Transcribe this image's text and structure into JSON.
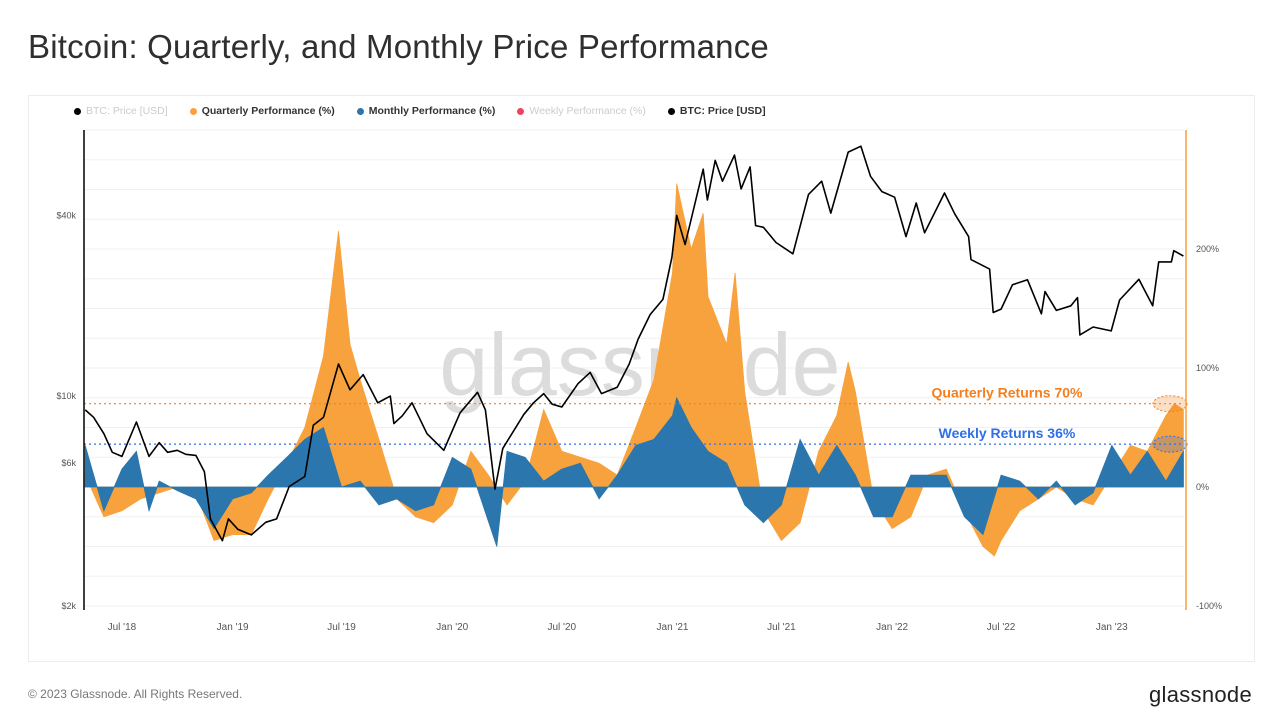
{
  "title": "Bitcoin: Quarterly, and Monthly Price Performance",
  "footer": "© 2023 Glassnode. All Rights Reserved.",
  "logo_text": "glassnode",
  "watermark": "glassnode",
  "legend": [
    {
      "label": "BTC: Price [USD]",
      "color": "#000000",
      "active": false
    },
    {
      "label": "Quarterly Performance (%)",
      "color": "#f7a23c",
      "active": true
    },
    {
      "label": "Monthly Performance (%)",
      "color": "#2a76ad",
      "active": true
    },
    {
      "label": "Weekly Performance (%)",
      "color": "#f0435a",
      "active": false
    },
    {
      "label": "BTC: Price [USD]",
      "color": "#000000",
      "active": true
    }
  ],
  "annotations": [
    {
      "text": "Quarterly Returns 70%",
      "level": 70,
      "color": "#f47f20"
    },
    {
      "text": "Weekly Returns 36%",
      "level": 36,
      "color": "#2f6fe8"
    }
  ],
  "chart_data": {
    "type": "line",
    "x_range": [
      "2018-04-29",
      "2023-05-01"
    ],
    "x_ticks": [
      "Jul '18",
      "Jan '19",
      "Jul '19",
      "Jan '20",
      "Jul '20",
      "Jan '21",
      "Jul '21",
      "Jan '22",
      "Jul '22",
      "Jan '23"
    ],
    "x_tick_dates": [
      "2018-07-01",
      "2019-01-01",
      "2019-07-01",
      "2020-01-01",
      "2020-07-01",
      "2021-01-01",
      "2021-07-01",
      "2022-01-01",
      "2022-07-01",
      "2023-01-01"
    ],
    "y_left": {
      "scale": "log",
      "range": [
        2000,
        77000
      ],
      "ticks": [
        2000,
        6000,
        10000,
        40000
      ],
      "tick_labels": [
        "$2k",
        "$6k",
        "$10k",
        "$40k"
      ]
    },
    "y_right": {
      "scale": "linear",
      "range": [
        -100,
        300
      ],
      "ticks": [
        -100,
        0,
        100,
        200
      ],
      "tick_labels": [
        "-100%",
        "0%",
        "100%",
        "200%"
      ]
    },
    "grid": true,
    "legend_position": "top-left",
    "series": [
      {
        "name": "BTC: Price [USD]",
        "axis": "left",
        "color": "#000000",
        "points": [
          [
            "2018-05-01",
            9000
          ],
          [
            "2018-05-15",
            8500
          ],
          [
            "2018-06-01",
            7500
          ],
          [
            "2018-06-15",
            6500
          ],
          [
            "2018-07-01",
            6300
          ],
          [
            "2018-07-25",
            8200
          ],
          [
            "2018-08-15",
            6300
          ],
          [
            "2018-09-01",
            7000
          ],
          [
            "2018-09-15",
            6500
          ],
          [
            "2018-10-01",
            6600
          ],
          [
            "2018-10-15",
            6400
          ],
          [
            "2018-11-01",
            6350
          ],
          [
            "2018-11-15",
            5600
          ],
          [
            "2018-11-25",
            3900
          ],
          [
            "2018-12-15",
            3300
          ],
          [
            "2018-12-25",
            3900
          ],
          [
            "2019-01-10",
            3600
          ],
          [
            "2019-02-01",
            3450
          ],
          [
            "2019-02-25",
            3800
          ],
          [
            "2019-03-15",
            3900
          ],
          [
            "2019-04-05",
            5000
          ],
          [
            "2019-05-01",
            5400
          ],
          [
            "2019-05-15",
            8000
          ],
          [
            "2019-06-01",
            8500
          ],
          [
            "2019-06-26",
            12800
          ],
          [
            "2019-07-15",
            10500
          ],
          [
            "2019-08-06",
            11800
          ],
          [
            "2019-08-30",
            9500
          ],
          [
            "2019-09-20",
            10000
          ],
          [
            "2019-09-26",
            8100
          ],
          [
            "2019-10-10",
            8600
          ],
          [
            "2019-10-26",
            9500
          ],
          [
            "2019-11-20",
            7500
          ],
          [
            "2019-12-18",
            6600
          ],
          [
            "2020-01-14",
            8800
          ],
          [
            "2020-02-12",
            10300
          ],
          [
            "2020-02-25",
            9000
          ],
          [
            "2020-03-12",
            4900
          ],
          [
            "2020-03-25",
            6700
          ],
          [
            "2020-04-29",
            8700
          ],
          [
            "2020-05-15",
            9500
          ],
          [
            "2020-06-01",
            10200
          ],
          [
            "2020-06-15",
            9400
          ],
          [
            "2020-07-01",
            9200
          ],
          [
            "2020-07-28",
            11000
          ],
          [
            "2020-08-17",
            12000
          ],
          [
            "2020-09-05",
            10200
          ],
          [
            "2020-10-01",
            10700
          ],
          [
            "2020-10-21",
            12800
          ],
          [
            "2020-11-05",
            15500
          ],
          [
            "2020-11-25",
            18700
          ],
          [
            "2020-12-16",
            21000
          ],
          [
            "2020-12-31",
            29000
          ],
          [
            "2021-01-08",
            40000
          ],
          [
            "2021-01-22",
            32000
          ],
          [
            "2021-02-21",
            57000
          ],
          [
            "2021-02-28",
            45000
          ],
          [
            "2021-03-13",
            61000
          ],
          [
            "2021-03-25",
            52000
          ],
          [
            "2021-04-14",
            63500
          ],
          [
            "2021-04-25",
            49000
          ],
          [
            "2021-05-10",
            58000
          ],
          [
            "2021-05-19",
            37000
          ],
          [
            "2021-06-01",
            36500
          ],
          [
            "2021-06-22",
            32500
          ],
          [
            "2021-07-20",
            29800
          ],
          [
            "2021-08-15",
            47000
          ],
          [
            "2021-09-06",
            52000
          ],
          [
            "2021-09-21",
            40700
          ],
          [
            "2021-10-20",
            65000
          ],
          [
            "2021-11-10",
            68000
          ],
          [
            "2021-11-26",
            54000
          ],
          [
            "2021-12-15",
            48000
          ],
          [
            "2022-01-05",
            46000
          ],
          [
            "2022-01-24",
            34000
          ],
          [
            "2022-02-10",
            44000
          ],
          [
            "2022-02-24",
            35000
          ],
          [
            "2022-03-29",
            47500
          ],
          [
            "2022-04-15",
            40500
          ],
          [
            "2022-05-08",
            34000
          ],
          [
            "2022-05-12",
            28500
          ],
          [
            "2022-06-12",
            26500
          ],
          [
            "2022-06-18",
            19000
          ],
          [
            "2022-07-01",
            19500
          ],
          [
            "2022-07-20",
            23500
          ],
          [
            "2022-08-14",
            24400
          ],
          [
            "2022-09-06",
            18800
          ],
          [
            "2022-09-12",
            22300
          ],
          [
            "2022-10-01",
            19300
          ],
          [
            "2022-10-25",
            20000
          ],
          [
            "2022-11-05",
            21300
          ],
          [
            "2022-11-09",
            16000
          ],
          [
            "2022-12-01",
            17000
          ],
          [
            "2022-12-31",
            16500
          ],
          [
            "2023-01-14",
            20900
          ],
          [
            "2023-02-15",
            24500
          ],
          [
            "2023-03-10",
            20000
          ],
          [
            "2023-03-20",
            28000
          ],
          [
            "2023-04-10",
            28000
          ],
          [
            "2023-04-14",
            30500
          ],
          [
            "2023-04-30",
            29300
          ]
        ]
      },
      {
        "name": "Quarterly Performance (%)",
        "axis": "right",
        "color": "#f7a23c",
        "points": [
          [
            "2018-05-01",
            10
          ],
          [
            "2018-06-01",
            -25
          ],
          [
            "2018-07-01",
            -20
          ],
          [
            "2018-08-01",
            -10
          ],
          [
            "2018-09-01",
            -5
          ],
          [
            "2018-10-01",
            0
          ],
          [
            "2018-11-01",
            -5
          ],
          [
            "2018-12-01",
            -45
          ],
          [
            "2019-01-01",
            -40
          ],
          [
            "2019-02-01",
            -40
          ],
          [
            "2019-03-01",
            -10
          ],
          [
            "2019-04-01",
            20
          ],
          [
            "2019-05-01",
            50
          ],
          [
            "2019-06-01",
            110
          ],
          [
            "2019-06-26",
            215
          ],
          [
            "2019-07-15",
            120
          ],
          [
            "2019-08-01",
            90
          ],
          [
            "2019-09-01",
            40
          ],
          [
            "2019-10-01",
            -10
          ],
          [
            "2019-11-01",
            -25
          ],
          [
            "2019-12-01",
            -30
          ],
          [
            "2020-01-01",
            -15
          ],
          [
            "2020-02-01",
            30
          ],
          [
            "2020-03-01",
            10
          ],
          [
            "2020-04-01",
            -15
          ],
          [
            "2020-05-01",
            5
          ],
          [
            "2020-06-01",
            65
          ],
          [
            "2020-07-01",
            30
          ],
          [
            "2020-08-01",
            25
          ],
          [
            "2020-09-01",
            20
          ],
          [
            "2020-10-01",
            10
          ],
          [
            "2020-11-01",
            50
          ],
          [
            "2020-12-01",
            90
          ],
          [
            "2021-01-01",
            180
          ],
          [
            "2021-01-08",
            255
          ],
          [
            "2021-02-01",
            200
          ],
          [
            "2021-02-21",
            230
          ],
          [
            "2021-03-01",
            160
          ],
          [
            "2021-04-01",
            120
          ],
          [
            "2021-04-15",
            180
          ],
          [
            "2021-05-01",
            80
          ],
          [
            "2021-06-01",
            -20
          ],
          [
            "2021-07-01",
            -45
          ],
          [
            "2021-08-01",
            -30
          ],
          [
            "2021-09-01",
            30
          ],
          [
            "2021-10-01",
            60
          ],
          [
            "2021-10-20",
            105
          ],
          [
            "2021-11-01",
            80
          ],
          [
            "2021-12-01",
            -10
          ],
          [
            "2022-01-01",
            -35
          ],
          [
            "2022-02-01",
            -25
          ],
          [
            "2022-03-01",
            10
          ],
          [
            "2022-04-01",
            15
          ],
          [
            "2022-05-01",
            -20
          ],
          [
            "2022-06-01",
            -50
          ],
          [
            "2022-06-20",
            -58
          ],
          [
            "2022-07-01",
            -45
          ],
          [
            "2022-08-01",
            -20
          ],
          [
            "2022-09-01",
            -10
          ],
          [
            "2022-10-01",
            0
          ],
          [
            "2022-11-01",
            -10
          ],
          [
            "2022-12-01",
            -15
          ],
          [
            "2023-01-01",
            10
          ],
          [
            "2023-02-01",
            35
          ],
          [
            "2023-03-01",
            30
          ],
          [
            "2023-04-01",
            60
          ],
          [
            "2023-04-15",
            70
          ],
          [
            "2023-04-30",
            65
          ]
        ]
      },
      {
        "name": "Monthly Performance (%)",
        "axis": "right",
        "color": "#2a76ad",
        "points": [
          [
            "2018-05-01",
            35
          ],
          [
            "2018-06-01",
            -20
          ],
          [
            "2018-07-01",
            15
          ],
          [
            "2018-07-25",
            30
          ],
          [
            "2018-08-15",
            -20
          ],
          [
            "2018-09-01",
            5
          ],
          [
            "2018-10-01",
            -3
          ],
          [
            "2018-11-01",
            -10
          ],
          [
            "2018-12-01",
            -35
          ],
          [
            "2019-01-01",
            -10
          ],
          [
            "2019-02-01",
            -5
          ],
          [
            "2019-03-01",
            10
          ],
          [
            "2019-04-01",
            25
          ],
          [
            "2019-05-01",
            40
          ],
          [
            "2019-06-01",
            50
          ],
          [
            "2019-07-01",
            0
          ],
          [
            "2019-08-01",
            5
          ],
          [
            "2019-09-01",
            -15
          ],
          [
            "2019-10-01",
            -10
          ],
          [
            "2019-11-01",
            -20
          ],
          [
            "2019-12-01",
            -15
          ],
          [
            "2020-01-01",
            25
          ],
          [
            "2020-02-01",
            15
          ],
          [
            "2020-03-15",
            -50
          ],
          [
            "2020-04-01",
            30
          ],
          [
            "2020-05-01",
            25
          ],
          [
            "2020-06-01",
            5
          ],
          [
            "2020-07-01",
            15
          ],
          [
            "2020-08-01",
            20
          ],
          [
            "2020-09-01",
            -10
          ],
          [
            "2020-10-01",
            10
          ],
          [
            "2020-11-01",
            35
          ],
          [
            "2020-12-01",
            40
          ],
          [
            "2021-01-01",
            60
          ],
          [
            "2021-01-08",
            75
          ],
          [
            "2021-02-01",
            50
          ],
          [
            "2021-03-01",
            30
          ],
          [
            "2021-04-01",
            20
          ],
          [
            "2021-05-01",
            -15
          ],
          [
            "2021-06-01",
            -30
          ],
          [
            "2021-07-01",
            -15
          ],
          [
            "2021-08-01",
            40
          ],
          [
            "2021-09-01",
            10
          ],
          [
            "2021-10-01",
            35
          ],
          [
            "2021-11-01",
            10
          ],
          [
            "2021-12-01",
            -25
          ],
          [
            "2022-01-01",
            -25
          ],
          [
            "2022-02-01",
            10
          ],
          [
            "2022-03-01",
            10
          ],
          [
            "2022-04-01",
            10
          ],
          [
            "2022-05-01",
            -25
          ],
          [
            "2022-06-01",
            -40
          ],
          [
            "2022-07-01",
            10
          ],
          [
            "2022-08-01",
            5
          ],
          [
            "2022-09-01",
            -10
          ],
          [
            "2022-10-01",
            5
          ],
          [
            "2022-11-01",
            -15
          ],
          [
            "2022-12-01",
            -5
          ],
          [
            "2023-01-01",
            35
          ],
          [
            "2023-02-01",
            10
          ],
          [
            "2023-03-01",
            30
          ],
          [
            "2023-04-01",
            5
          ],
          [
            "2023-04-30",
            30
          ]
        ]
      }
    ]
  }
}
